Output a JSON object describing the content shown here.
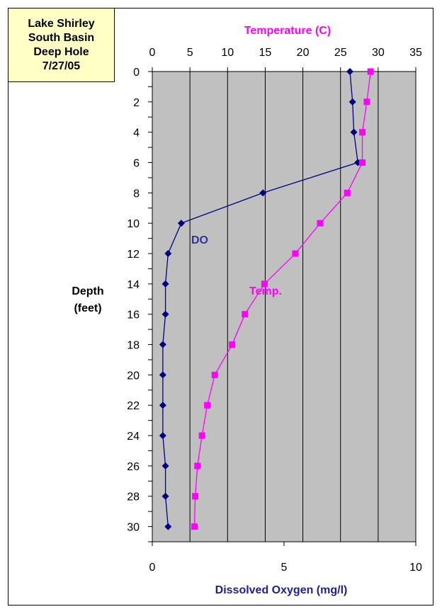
{
  "title_box": {
    "line1": "Lake Shirley",
    "line2": "South Basin",
    "line3": "Deep Hole",
    "line4": "7/27/05"
  },
  "chart_data": {
    "type": "line",
    "depth": [
      0,
      2,
      4,
      6,
      8,
      10,
      12,
      14,
      16,
      18,
      20,
      22,
      24,
      26,
      28,
      30
    ],
    "ylabel_line1": "Depth",
    "ylabel_line2": "(feet)",
    "ylim": [
      0,
      31
    ],
    "y_reversed": true,
    "yticks": [
      0,
      2,
      4,
      6,
      8,
      10,
      12,
      14,
      16,
      18,
      20,
      22,
      24,
      26,
      28,
      30
    ],
    "top_axis": {
      "label": "Temperature (C)",
      "range": [
        0,
        35
      ],
      "ticks": [
        0,
        5,
        10,
        15,
        20,
        25,
        30,
        35
      ]
    },
    "bottom_axis": {
      "label": "Dissolved Oxygen (mg/l)",
      "range": [
        0,
        10
      ],
      "ticks": [
        0,
        5,
        10
      ]
    },
    "series": [
      {
        "name": "DO",
        "axis": "bottom",
        "color": "#000080",
        "marker": "diamond",
        "values": [
          7.5,
          7.6,
          7.65,
          7.8,
          4.2,
          1.1,
          0.6,
          0.5,
          0.5,
          0.4,
          0.4,
          0.4,
          0.4,
          0.5,
          0.5,
          0.6
        ]
      },
      {
        "name": "Temp.",
        "axis": "top",
        "color": "#ff00ff",
        "marker": "square",
        "values": [
          29.0,
          28.5,
          27.9,
          27.9,
          25.9,
          22.3,
          19.0,
          14.9,
          12.3,
          10.6,
          8.3,
          7.3,
          6.6,
          6.0,
          5.7,
          5.6
        ]
      }
    ],
    "annotations": {
      "do_label": "DO",
      "temp_label": "Temp."
    },
    "grid": "vertical",
    "plot_background": "#c0c0c0"
  }
}
